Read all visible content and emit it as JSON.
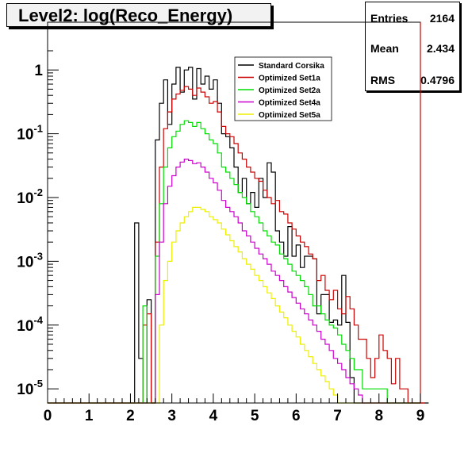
{
  "title": "Level2:  log(Reco_Energy)",
  "stats": {
    "entries_label": "Entries",
    "entries_value": "2164",
    "mean_label": "Mean",
    "mean_value": "2.434",
    "rms_label": "RMS",
    "rms_value": "0.4796"
  },
  "colors": {
    "standard": "#000000",
    "set1a": "#cc0000",
    "set2a": "#00dd00",
    "set4a": "#cc00cc",
    "set5a": "#eeee00"
  },
  "chart_data": {
    "type": "histogram",
    "xlim": [
      0,
      9
    ],
    "ylim": [
      6e-06,
      2
    ],
    "yscale": "log",
    "bin_width": 0.1,
    "x_start": 0.0,
    "x_ticks": [
      0,
      1,
      2,
      3,
      4,
      5,
      6,
      7,
      8,
      9
    ],
    "x_tick_labels": [
      "0",
      "1",
      "2",
      "3",
      "4",
      "5",
      "6",
      "7",
      "8",
      "9"
    ],
    "y_ticks": [
      1,
      0.1,
      0.01,
      0.001,
      0.0001,
      1e-05
    ],
    "y_tick_labels": [
      {
        "base": "1",
        "exp": ""
      },
      {
        "base": "10",
        "exp": "-1"
      },
      {
        "base": "10",
        "exp": "-2"
      },
      {
        "base": "10",
        "exp": "-3"
      },
      {
        "base": "10",
        "exp": "-4"
      },
      {
        "base": "10",
        "exp": "-5"
      }
    ],
    "legend_position": "top-right",
    "series": [
      {
        "name": "Standard Corsika",
        "color_key": "standard",
        "values": [
          0,
          0,
          0,
          0,
          0,
          0,
          0,
          0,
          0,
          0,
          0,
          0,
          0,
          0,
          0,
          0,
          0,
          0,
          0,
          0,
          0,
          0.004,
          3e-05,
          0,
          0.00025,
          0,
          0.08,
          0.3,
          0.7,
          0.14,
          0.6,
          1.1,
          0.45,
          1.0,
          1.1,
          0.35,
          1.05,
          0.6,
          0.8,
          0.5,
          0.7,
          0.3,
          0.1,
          0.09,
          0.06,
          0.03,
          0.012,
          0.02,
          0.008,
          0.012,
          0.007,
          0.02,
          0.01,
          0.035,
          0.025,
          0.003,
          0.002,
          0.0012,
          0.0035,
          0.0012,
          0.0018,
          0.0008,
          0.0012,
          0.0012,
          0.0011,
          0.00015,
          0.0003,
          0.0003,
          0.00011,
          0.00012,
          0.0001,
          0.0006,
          0.00011,
          1.5e-05,
          6e-06,
          0,
          0,
          0,
          0,
          0,
          0,
          0,
          0,
          0,
          0,
          0,
          0,
          0,
          0,
          0,
          0,
          0
        ]
      },
      {
        "name": "Optimized Set1a",
        "color_key": "set1a",
        "values": [
          0,
          0,
          0,
          0,
          0,
          0,
          0,
          0,
          0,
          0,
          0,
          0,
          0,
          0,
          0,
          0,
          0,
          0,
          0,
          0,
          0,
          0,
          0,
          0.0001,
          0.00015,
          0,
          0.002,
          0.03,
          0.12,
          0.22,
          0.35,
          0.42,
          0.48,
          0.55,
          0.5,
          0.4,
          0.52,
          0.45,
          0.38,
          0.3,
          0.32,
          0.22,
          0.13,
          0.1,
          0.09,
          0.07,
          0.05,
          0.04,
          0.03,
          0.025,
          0.02,
          0.018,
          0.013,
          0.01,
          0.008,
          0.009,
          0.006,
          0.0055,
          0.004,
          0.0032,
          0.0025,
          0.002,
          0.0017,
          0.0013,
          0.0011,
          0.0005,
          0.0006,
          0.00035,
          0.00025,
          0.00035,
          0.00018,
          0.00015,
          0.00028,
          0.00018,
          0.0001,
          6e-05,
          6e-05,
          3e-05,
          1.5e-05,
          3e-05,
          7e-05,
          4e-05,
          3e-05,
          1.2e-05,
          3e-05,
          1e-05,
          1e-05,
          6e-06,
          6e-06,
          0,
          0
        ]
      },
      {
        "name": "Optimized Set2a",
        "color_key": "set2a",
        "values": [
          0,
          0,
          0,
          0,
          0,
          0,
          0,
          0,
          0,
          0,
          0,
          0,
          0,
          0,
          0,
          0,
          0,
          0,
          0,
          0,
          0,
          0,
          0,
          0.0002,
          0,
          0,
          0.0012,
          0.008,
          0.03,
          0.06,
          0.09,
          0.11,
          0.14,
          0.16,
          0.15,
          0.13,
          0.15,
          0.12,
          0.1,
          0.08,
          0.07,
          0.05,
          0.03,
          0.025,
          0.02,
          0.016,
          0.012,
          0.01,
          0.008,
          0.006,
          0.005,
          0.004,
          0.003,
          0.0025,
          0.002,
          0.0018,
          0.0013,
          0.0011,
          0.0009,
          0.0007,
          0.0006,
          0.0005,
          0.0004,
          0.0003,
          0.0002,
          0.0002,
          0.00015,
          0.00012,
          0.0001,
          9e-05,
          7e-05,
          5e-05,
          4e-05,
          3e-05,
          2e-05,
          2e-05,
          1e-05,
          1e-05,
          1e-05,
          1e-05,
          1e-05,
          1e-05,
          6e-06,
          0,
          0,
          0,
          0,
          0,
          0,
          0
        ]
      },
      {
        "name": "Optimized Set4a",
        "color_key": "set4a",
        "values": [
          0,
          0,
          0,
          0,
          0,
          0,
          0,
          0,
          0,
          0,
          0,
          0,
          0,
          0,
          0,
          0,
          0,
          0,
          0,
          0,
          0,
          0,
          0,
          0,
          0,
          0,
          0.0003,
          0.002,
          0.008,
          0.015,
          0.022,
          0.03,
          0.036,
          0.04,
          0.038,
          0.034,
          0.035,
          0.03,
          0.025,
          0.02,
          0.017,
          0.013,
          0.009,
          0.007,
          0.006,
          0.005,
          0.004,
          0.003,
          0.0025,
          0.002,
          0.0016,
          0.0013,
          0.0011,
          0.0009,
          0.0007,
          0.0006,
          0.0005,
          0.0004,
          0.00033,
          0.00027,
          0.00022,
          0.00018,
          0.00015,
          0.00012,
          0.0001,
          8e-05,
          6e-05,
          5e-05,
          4e-05,
          3e-05,
          2.5e-05,
          2e-05,
          1.5e-05,
          1.2e-05,
          1e-05,
          8e-06,
          6e-06,
          0,
          0,
          0,
          0,
          0,
          0,
          0,
          0,
          0,
          0,
          0,
          0,
          0
        ]
      },
      {
        "name": "Optimized Set5a",
        "color_key": "set5a",
        "values": [
          0,
          0,
          0,
          0,
          0,
          0,
          0,
          0,
          0,
          0,
          0,
          0,
          0,
          0,
          0,
          0,
          0,
          0,
          0,
          0,
          0,
          0,
          0,
          0,
          0,
          0,
          0,
          0.0001,
          0.0005,
          0.001,
          0.002,
          0.003,
          0.004,
          0.005,
          0.006,
          0.007,
          0.007,
          0.0065,
          0.006,
          0.005,
          0.0045,
          0.004,
          0.0032,
          0.0026,
          0.0021,
          0.0017,
          0.0014,
          0.0011,
          0.0009,
          0.00075,
          0.0006,
          0.0005,
          0.0004,
          0.00032,
          0.00026,
          0.0002,
          0.00016,
          0.00013,
          0.0001,
          8e-05,
          6.5e-05,
          5e-05,
          4e-05,
          3.2e-05,
          2.5e-05,
          2e-05,
          1.6e-05,
          1.3e-05,
          1e-05,
          8e-06,
          6e-06,
          0,
          0,
          0,
          0,
          0,
          0,
          0,
          0,
          0,
          0,
          0,
          0,
          0,
          0,
          0,
          0,
          0,
          0,
          0
        ]
      }
    ]
  }
}
